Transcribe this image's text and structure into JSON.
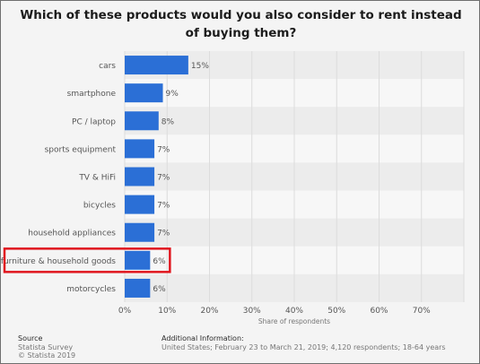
{
  "chart_data": {
    "type": "bar",
    "orientation": "horizontal",
    "title": "Which of these products would you also consider to rent instead of buying them?",
    "categories": [
      "cars",
      "smartphone",
      "PC / laptop",
      "sports equipment",
      "TV & HiFi",
      "bicycles",
      "household appliances",
      "furniture & household goods",
      "motorcycles"
    ],
    "values": [
      15,
      9,
      8,
      7,
      7,
      7,
      7,
      6,
      6
    ],
    "value_labels": [
      "15%",
      "9%",
      "8%",
      "7%",
      "7%",
      "7%",
      "7%",
      "6%",
      "6%"
    ],
    "xlabel": "Share of respondents",
    "ylabel": "",
    "xlim": [
      0,
      80
    ],
    "xticks": [
      0,
      10,
      20,
      30,
      40,
      50,
      60,
      70
    ],
    "xtick_labels": [
      "0%",
      "10%",
      "20%",
      "30%",
      "40%",
      "50%",
      "60%",
      "70%"
    ],
    "grid": true,
    "legend": "none",
    "highlighted_category": "furniture & household goods",
    "colors": {
      "bar": "#2b6fd6",
      "highlight_box": "#e0161e",
      "grid": "#dcdcdc"
    }
  },
  "footer": {
    "source_heading": "Source",
    "source_lines": [
      "Statista Survey",
      "© Statista 2019"
    ],
    "info_heading": "Additional Information:",
    "info_text": "United States; February 23 to March 21, 2019; 4,120 respondents; 18-64 years"
  }
}
